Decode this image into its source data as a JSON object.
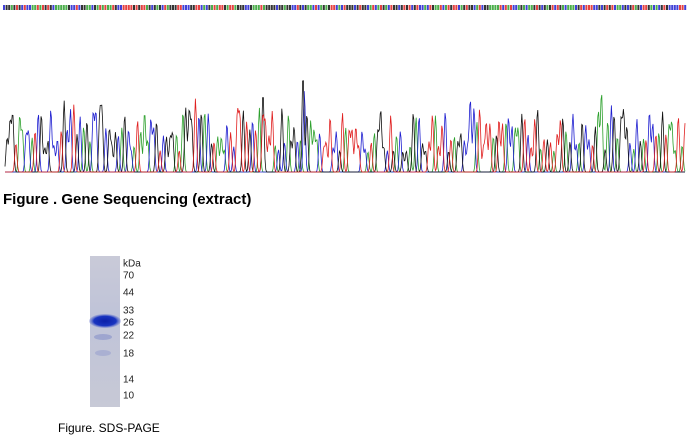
{
  "figures": [
    {
      "caption": "Figure . Gene Sequencing (extract)"
    },
    {
      "caption": "Figure. SDS-PAGE",
      "unit": "kDa",
      "markers": [
        70,
        44,
        33,
        26,
        22,
        18,
        14,
        10
      ]
    }
  ]
}
